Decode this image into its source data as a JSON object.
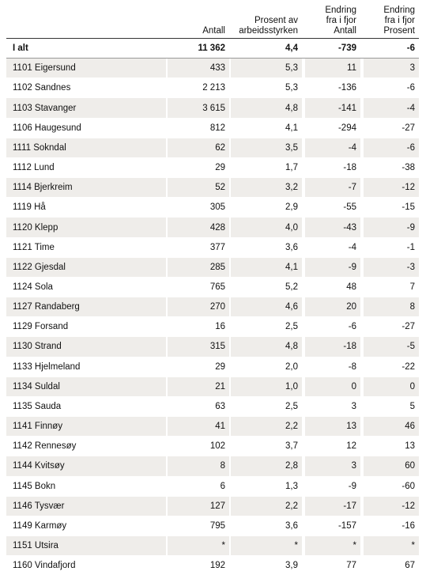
{
  "table": {
    "header": [
      [
        "Antall"
      ],
      [
        "Prosent av",
        "arbeidsstyrken"
      ],
      [
        "Endring",
        "fra i fjor",
        "Antall"
      ],
      [
        "Endring",
        "fra i fjor",
        "Prosent"
      ]
    ],
    "rows": [
      [
        "I alt",
        "11 362",
        "4,4",
        "-739",
        "-6"
      ],
      [
        "1101 Eigersund",
        "433",
        "5,3",
        "11",
        "3"
      ],
      [
        "1102 Sandnes",
        "2 213",
        "5,3",
        "-136",
        "-6"
      ],
      [
        "1103 Stavanger",
        "3 615",
        "4,8",
        "-141",
        "-4"
      ],
      [
        "1106 Haugesund",
        "812",
        "4,1",
        "-294",
        "-27"
      ],
      [
        "1111 Sokndal",
        "62",
        "3,5",
        "-4",
        "-6"
      ],
      [
        "1112 Lund",
        "29",
        "1,7",
        "-18",
        "-38"
      ],
      [
        "1114 Bjerkreim",
        "52",
        "3,2",
        "-7",
        "-12"
      ],
      [
        "1119 Hå",
        "305",
        "2,9",
        "-55",
        "-15"
      ],
      [
        "1120 Klepp",
        "428",
        "4,0",
        "-43",
        "-9"
      ],
      [
        "1121 Time",
        "377",
        "3,6",
        "-4",
        "-1"
      ],
      [
        "1122 Gjesdal",
        "285",
        "4,1",
        "-9",
        "-3"
      ],
      [
        "1124 Sola",
        "765",
        "5,2",
        "48",
        "7"
      ],
      [
        "1127 Randaberg",
        "270",
        "4,6",
        "20",
        "8"
      ],
      [
        "1129 Forsand",
        "16",
        "2,5",
        "-6",
        "-27"
      ],
      [
        "1130 Strand",
        "315",
        "4,8",
        "-18",
        "-5"
      ],
      [
        "1133 Hjelmeland",
        "29",
        "2,0",
        "-8",
        "-22"
      ],
      [
        "1134 Suldal",
        "21",
        "1,0",
        "0",
        "0"
      ],
      [
        "1135 Sauda",
        "63",
        "2,5",
        "3",
        "5"
      ],
      [
        "1141 Finnøy",
        "41",
        "2,2",
        "13",
        "46"
      ],
      [
        "1142 Rennesøy",
        "102",
        "3,7",
        "12",
        "13"
      ],
      [
        "1144 Kvitsøy",
        "8",
        "2,8",
        "3",
        "60"
      ],
      [
        "1145 Bokn",
        "6",
        "1,3",
        "-9",
        "-60"
      ],
      [
        "1146 Tysvær",
        "127",
        "2,2",
        "-17",
        "-12"
      ],
      [
        "1149 Karmøy",
        "795",
        "3,6",
        "-157",
        "-16"
      ],
      [
        "1151 Utsira",
        "*",
        "*",
        "*",
        "*"
      ],
      [
        "1160 Vindafjord",
        "192",
        "3,9",
        "77",
        "67"
      ]
    ]
  }
}
